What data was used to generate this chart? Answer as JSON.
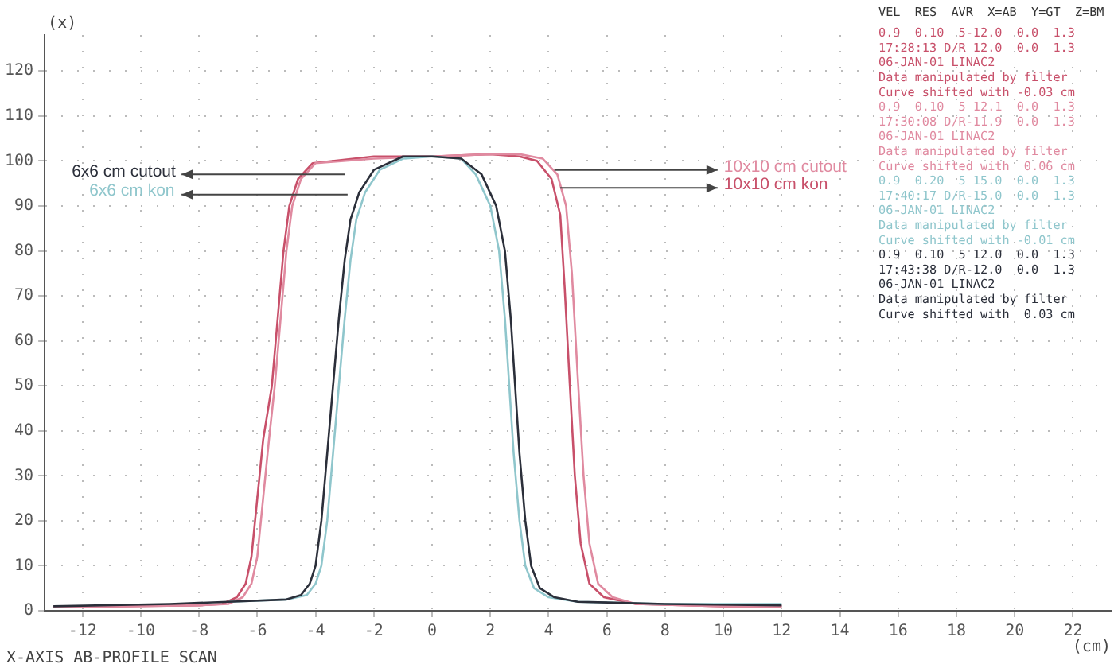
{
  "chart_data": {
    "type": "line",
    "xlabel": "(cm)",
    "ylabel": "(x)",
    "xlim": [
      -13.3,
      23.3
    ],
    "ylim": [
      0,
      128
    ],
    "xticks": [
      -12,
      -10,
      -8,
      -6,
      -4,
      -2,
      0,
      2,
      4,
      6,
      8,
      10,
      12,
      14,
      16,
      18,
      20,
      22
    ],
    "yticks": [
      0,
      10,
      20,
      30,
      40,
      50,
      60,
      70,
      80,
      90,
      100,
      110,
      120
    ],
    "grid": true,
    "legend": false,
    "marker": "none",
    "line_style": "solid",
    "annotations": [
      "X-AXIS AB-PROFILE SCAN",
      "VEL  RES  AVR  X=AB  Y=GT  Z=BM",
      "0.9  0.10  5-12.0  0.0  1.3",
      "17:28:13 D/R 12.0  0.0  1.3",
      "06-JAN-01 LINAC2",
      "Data manipulated by filter",
      "Curve shifted with -0.03 cm",
      "0.9  0.10  5 12.1  0.0  1.3",
      "17:30:08 D/R-11.9  0.0  1.3",
      "06-JAN-01 LINAC2",
      "Data manipulated by filter",
      "Curve shifted with  0.06 cm",
      "0.9  0.20  5 15.0  0.0  1.3",
      "17:40:17 D/R-15.0  0.0  1.3",
      "06-JAN-01 LINAC2",
      "Data manipulated by filter",
      "Curve shifted with -0.01 cm",
      "0.9  0.10  5 12.0  0.0  1.3",
      "17:43:38 D/R-12.0  0.0  1.3",
      "06-JAN-01 LINAC2",
      "Data manipulated by filter",
      "Curve shifted with  0.03 cm"
    ],
    "series": [
      {
        "name": "6x6 cm cutout",
        "color": "#2b2f3a",
        "x": [
          -13,
          -9,
          -7,
          -5,
          -4.5,
          -4.2,
          -4,
          -3.8,
          -3.6,
          -3.4,
          -3.2,
          -3,
          -2.8,
          -2.5,
          -2,
          -1,
          0,
          1,
          1.7,
          2.2,
          2.5,
          2.7,
          2.85,
          3,
          3.2,
          3.4,
          3.7,
          4.2,
          5,
          8,
          12
        ],
        "values": [
          1,
          1.5,
          2,
          2.5,
          3.5,
          6,
          10,
          20,
          35,
          50,
          65,
          78,
          87,
          93,
          98,
          101,
          101,
          100.5,
          97,
          90,
          80,
          65,
          50,
          35,
          20,
          10,
          5,
          3,
          2,
          1.5,
          1.2
        ]
      },
      {
        "name": "6x6 cm kon",
        "color": "#8fc6cc",
        "x": [
          -7,
          -5,
          -4.3,
          -4,
          -3.8,
          -3.6,
          -3.4,
          -3.2,
          -3,
          -2.8,
          -2.6,
          -2.3,
          -1.8,
          -1,
          0,
          1,
          1.5,
          2,
          2.3,
          2.5,
          2.65,
          2.8,
          3,
          3.2,
          3.5,
          4,
          5,
          8,
          12
        ],
        "values": [
          2,
          2.5,
          3.5,
          6,
          10,
          20,
          35,
          50,
          65,
          78,
          87,
          93,
          98,
          100.5,
          101,
          100.5,
          97,
          90,
          80,
          65,
          50,
          35,
          20,
          10,
          5,
          3,
          2,
          1.5,
          1.5
        ]
      },
      {
        "name": "10x10 cm cutout",
        "color": "#e08aa0",
        "x": [
          -13,
          -8,
          -7,
          -6.5,
          -6.2,
          -6,
          -5.8,
          -5.6,
          -5.4,
          -5.2,
          -5,
          -4.8,
          -4.5,
          -4,
          -2,
          0,
          2,
          3,
          3.8,
          4.3,
          4.6,
          4.8,
          5,
          5.2,
          5.4,
          5.7,
          6.2,
          7,
          10,
          12
        ],
        "values": [
          0.8,
          1.2,
          1.5,
          3,
          6,
          12,
          25,
          38,
          50,
          65,
          80,
          90,
          96,
          99.5,
          100.5,
          101,
          101.5,
          101.5,
          100.5,
          97,
          90,
          75,
          52,
          30,
          15,
          6,
          3,
          1.5,
          1,
          1
        ]
      },
      {
        "name": "10x10 cm kon",
        "color": "#c8506a",
        "x": [
          -13,
          -8,
          -7.2,
          -6.7,
          -6.4,
          -6.2,
          -6,
          -5.8,
          -5.5,
          -5.3,
          -5.1,
          -4.9,
          -4.6,
          -4.1,
          -2,
          0,
          2,
          3,
          3.6,
          4.1,
          4.4,
          4.55,
          4.73,
          4.9,
          5.1,
          5.4,
          5.9,
          7,
          10,
          12
        ],
        "values": [
          0.8,
          1.2,
          1.5,
          3,
          6,
          12,
          25,
          38,
          50,
          65,
          80,
          90,
          96,
          99.5,
          101,
          101,
          101.5,
          101,
          100,
          96,
          88,
          72,
          50,
          30,
          15,
          6,
          3,
          1.5,
          1,
          1
        ]
      }
    ]
  }
}
